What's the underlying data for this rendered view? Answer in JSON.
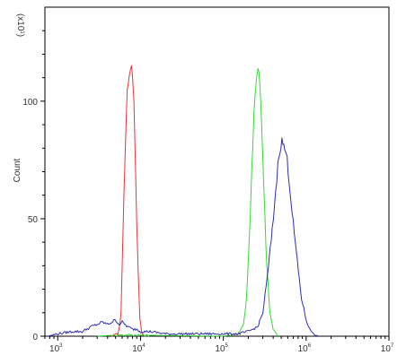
{
  "chart_data": {
    "type": "line",
    "ylabel": "Count",
    "scale_note": "(x10",
    "scale_note_exp": "1",
    "scale_note_close": ")",
    "x_scale": "log",
    "xlim": [
      700,
      10000000
    ],
    "ylim": [
      0,
      140
    ],
    "x_ticks": [
      {
        "value": 1000,
        "base": "10",
        "exp": "3"
      },
      {
        "value": 10000,
        "base": "10",
        "exp": "4"
      },
      {
        "value": 100000,
        "base": "10",
        "exp": "5"
      },
      {
        "value": 1000000,
        "base": "10",
        "exp": "6"
      },
      {
        "value": 10000000,
        "base": "10",
        "exp": "7"
      }
    ],
    "y_ticks": [
      {
        "value": 0,
        "label": "0"
      },
      {
        "value": 50,
        "label": "50"
      },
      {
        "value": 100,
        "label": "100"
      }
    ],
    "grid": false,
    "series": [
      {
        "color": "#e8353a",
        "points": [
          [
            4500,
            0
          ],
          [
            5300,
            1
          ],
          [
            5600,
            4
          ],
          [
            5800,
            10
          ],
          [
            6000,
            30
          ],
          [
            6300,
            60
          ],
          [
            6600,
            85
          ],
          [
            6900,
            103
          ],
          [
            7300,
            112
          ],
          [
            7600,
            114
          ],
          [
            7800,
            116
          ],
          [
            8000,
            112
          ],
          [
            8300,
            100
          ],
          [
            8600,
            80
          ],
          [
            9000,
            50
          ],
          [
            9400,
            25
          ],
          [
            9800,
            8
          ],
          [
            10300,
            2
          ],
          [
            11000,
            0
          ]
        ]
      },
      {
        "color": "#39d639",
        "points": [
          [
            3000,
            0
          ],
          [
            5000,
            0.5
          ],
          [
            8000,
            0.5
          ],
          [
            20000,
            0.3
          ],
          [
            100000,
            0
          ],
          [
            150000,
            1
          ],
          [
            175000,
            5
          ],
          [
            190000,
            15
          ],
          [
            205000,
            40
          ],
          [
            220000,
            70
          ],
          [
            235000,
            95
          ],
          [
            250000,
            110
          ],
          [
            262000,
            115
          ],
          [
            275000,
            108
          ],
          [
            290000,
            90
          ],
          [
            310000,
            60
          ],
          [
            335000,
            30
          ],
          [
            365000,
            10
          ],
          [
            400000,
            3
          ],
          [
            450000,
            0
          ]
        ]
      },
      {
        "color": "#2f2fb0",
        "points": [
          [
            750,
            0
          ],
          [
            1000,
            1
          ],
          [
            1500,
            2
          ],
          [
            2000,
            2
          ],
          [
            2500,
            4
          ],
          [
            3000,
            5
          ],
          [
            3500,
            6
          ],
          [
            4000,
            5
          ],
          [
            4500,
            6
          ],
          [
            5000,
            7
          ],
          [
            5500,
            5
          ],
          [
            6000,
            6
          ],
          [
            7000,
            4
          ],
          [
            8000,
            3
          ],
          [
            9000,
            3
          ],
          [
            10000,
            2
          ],
          [
            13000,
            2
          ],
          [
            20000,
            1
          ],
          [
            40000,
            1
          ],
          [
            80000,
            1
          ],
          [
            150000,
            1
          ],
          [
            200000,
            2
          ],
          [
            260000,
            4
          ],
          [
            300000,
            10
          ],
          [
            340000,
            25
          ],
          [
            390000,
            45
          ],
          [
            430000,
            62
          ],
          [
            470000,
            78
          ],
          [
            510000,
            83
          ],
          [
            550000,
            80
          ],
          [
            590000,
            75
          ],
          [
            640000,
            62
          ],
          [
            700000,
            48
          ],
          [
            780000,
            32
          ],
          [
            880000,
            16
          ],
          [
            1000000,
            7
          ],
          [
            1100000,
            3
          ],
          [
            1250000,
            1
          ],
          [
            1400000,
            0
          ]
        ]
      }
    ]
  }
}
